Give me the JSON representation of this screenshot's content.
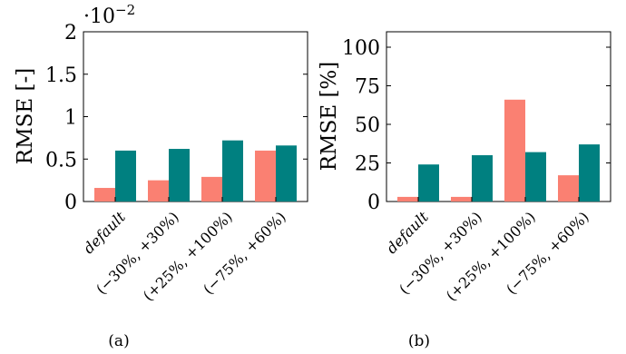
{
  "colors": {
    "series1": "#fa8072",
    "series2": "#008080"
  },
  "chart_data": [
    {
      "type": "bar",
      "caption": "(a)",
      "ylabel": "RMSE [-]",
      "scale_label": "·10",
      "scale_exponent": "−2",
      "categories": [
        "default",
        "(−30%, +30%)",
        "(+25%, +100%)",
        "(−75%, +60%)"
      ],
      "category_italic": [
        true,
        false,
        false,
        false
      ],
      "ylim": [
        0,
        2
      ],
      "yticks": [
        0,
        0.5,
        1,
        1.5,
        2
      ],
      "ytick_labels": [
        "0",
        "0.5",
        "1",
        "1.5",
        "2"
      ],
      "series": [
        {
          "values": [
            0.16,
            0.25,
            0.29,
            0.6
          ]
        },
        {
          "values": [
            0.6,
            0.62,
            0.72,
            0.66
          ]
        }
      ],
      "legend": "none",
      "grid": false
    },
    {
      "type": "bar",
      "caption": "(b)",
      "ylabel": "RMSE [%]",
      "categories": [
        "default",
        "(−30%, +30%)",
        "(+25%, +100%)",
        "(−75%, +60%)"
      ],
      "category_italic": [
        true,
        false,
        false,
        false
      ],
      "ylim": [
        0,
        110
      ],
      "yticks": [
        0,
        25,
        50,
        75,
        100
      ],
      "ytick_labels": [
        "0",
        "25",
        "50",
        "75",
        "100"
      ],
      "series": [
        {
          "values": [
            3,
            3,
            66,
            17
          ]
        },
        {
          "values": [
            24,
            30,
            32,
            37
          ]
        }
      ],
      "legend": "none",
      "grid": false
    }
  ]
}
